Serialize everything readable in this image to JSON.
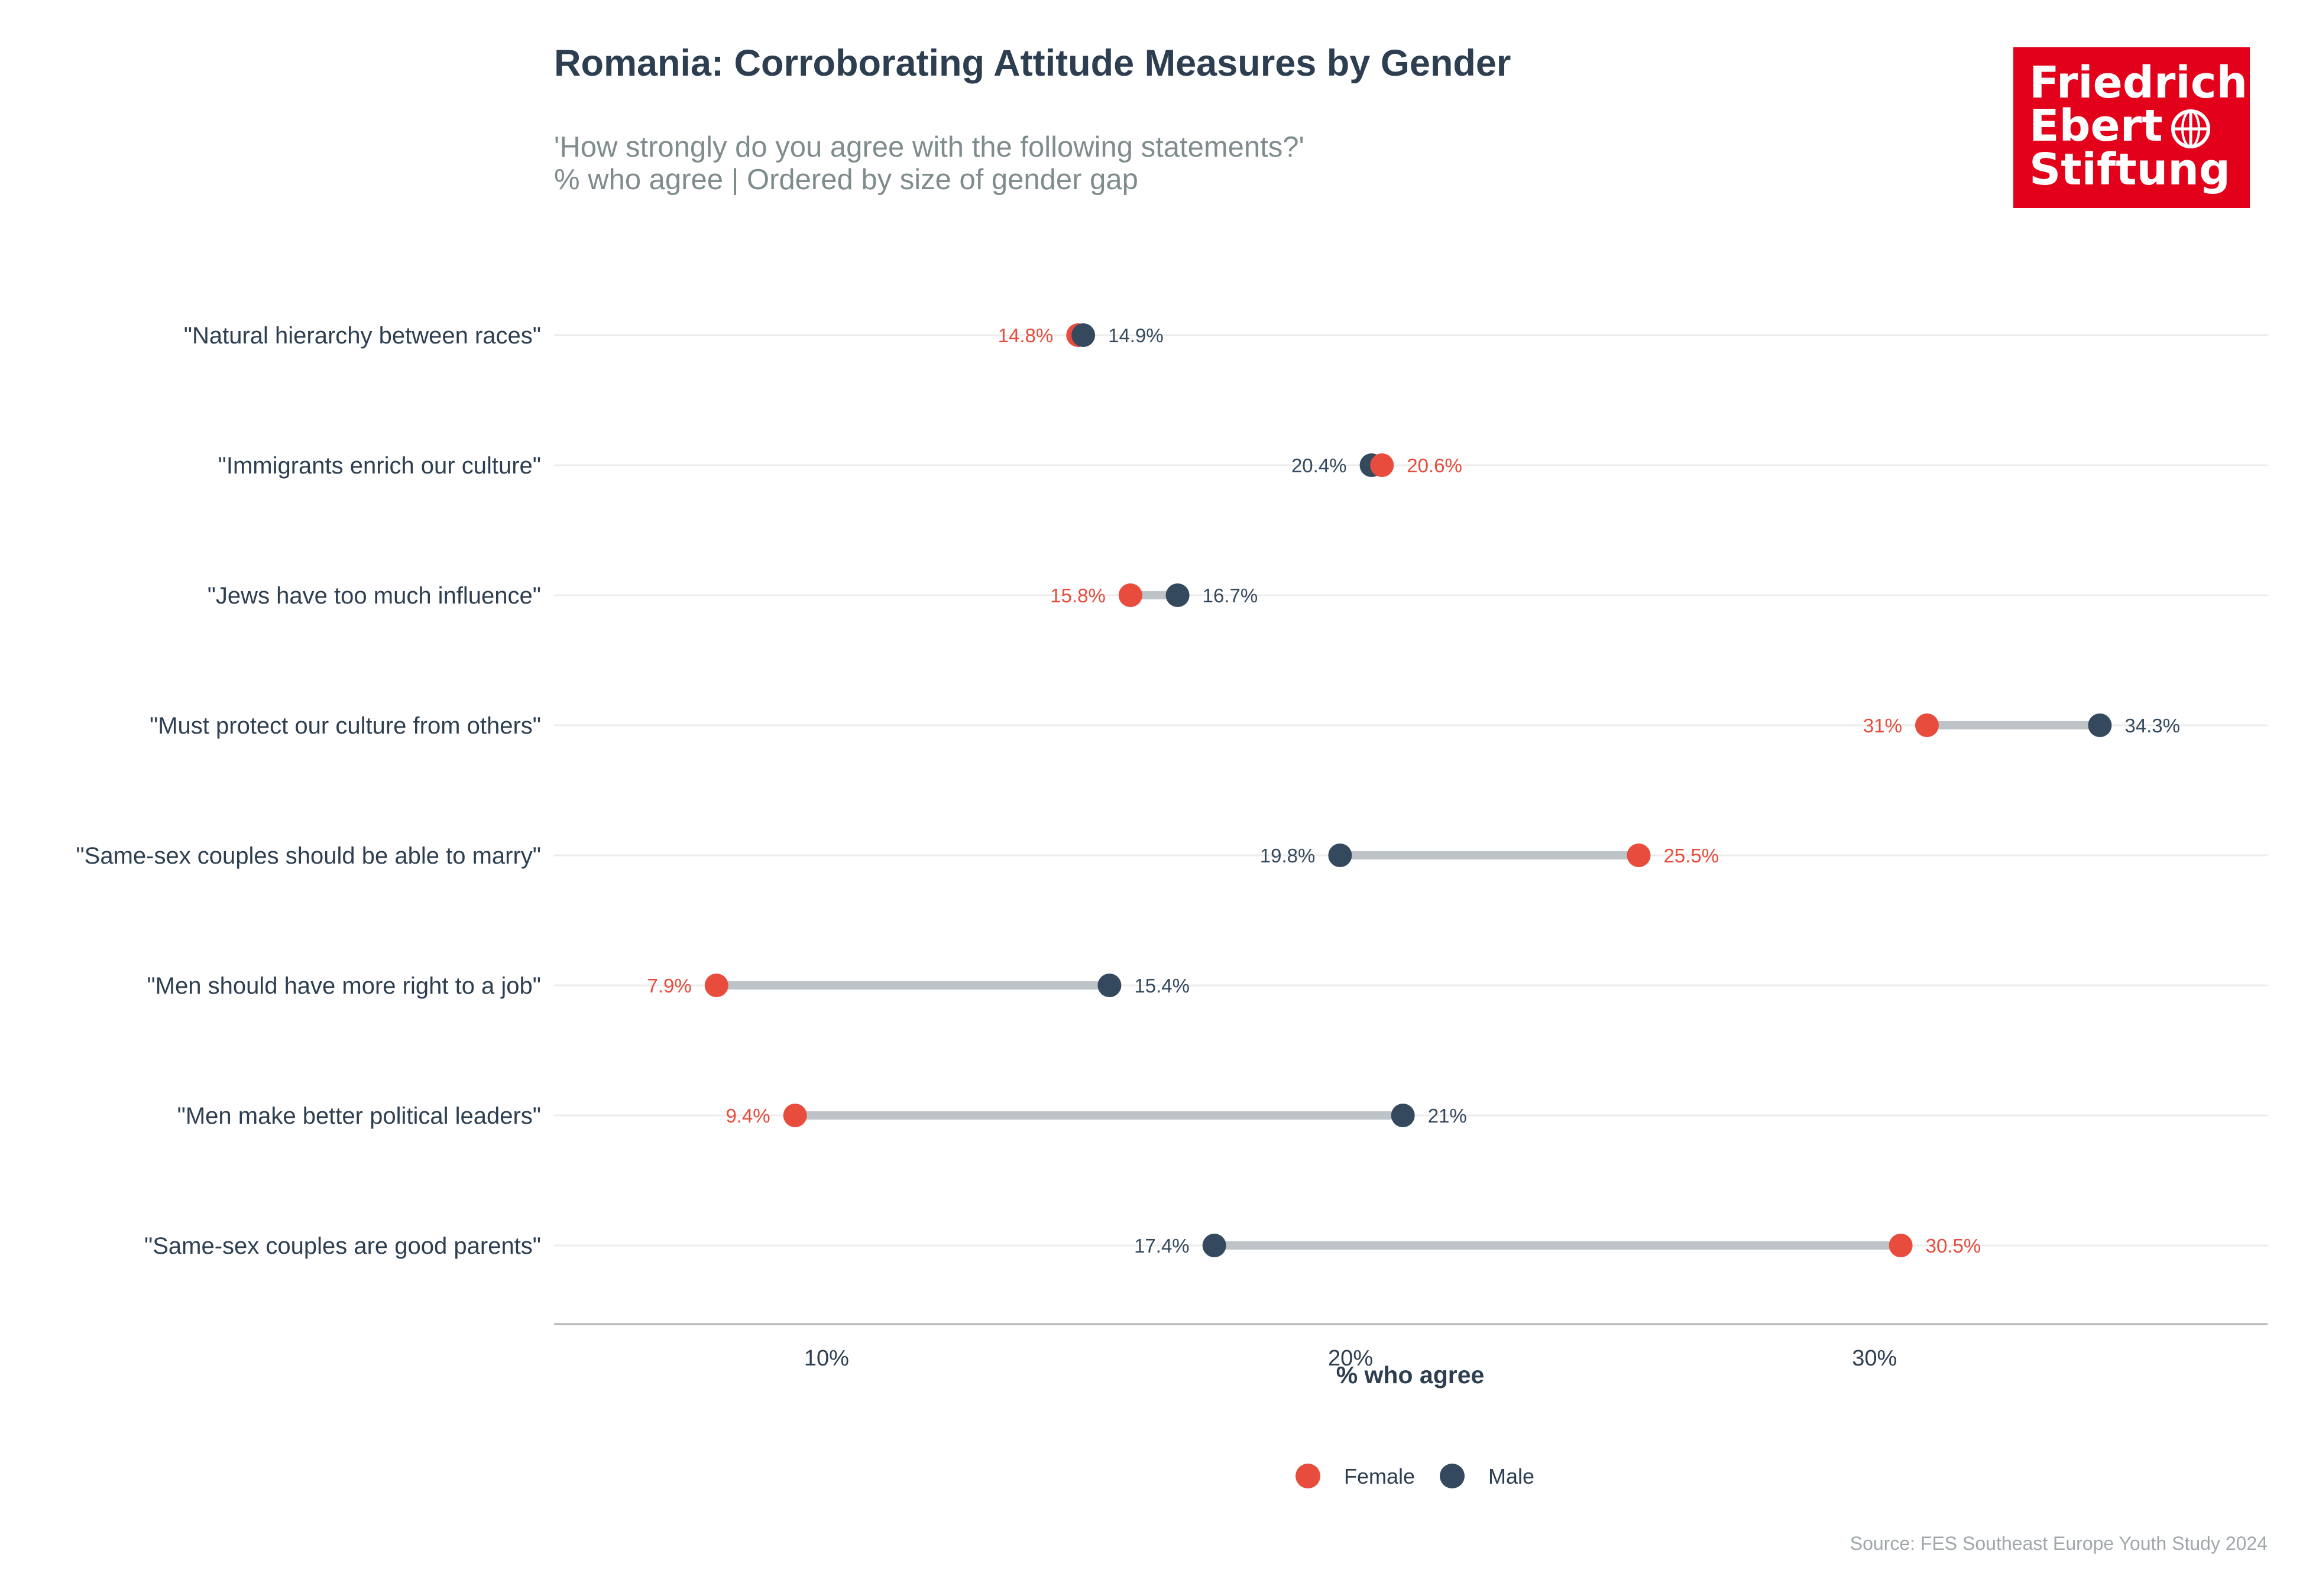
{
  "title": "Romania: Corroborating Attitude Measures by Gender",
  "subtitle_line1": "'How strongly do you agree with the following statements?'",
  "subtitle_line2": "% who agree | Ordered by size of gender gap",
  "caption": "Source: FES Southeast Europe Youth Study 2024",
  "logo": {
    "line1": "Friedrich",
    "line2": "Ebert",
    "line3": "Stiftung",
    "background": "#e2001a"
  },
  "colors": {
    "female": "#e74c3c",
    "male": "#34495e",
    "segment": "#bdc3c7",
    "grid": "#ececec",
    "axis": "#b3b3b3"
  },
  "legend": [
    {
      "key": "female",
      "label": "Female"
    },
    {
      "key": "male",
      "label": "Male"
    }
  ],
  "chart_data": {
    "type": "dumbbell",
    "xlabel": "% who agree",
    "ylabel": "",
    "xlim": [
      4.8,
      37.5
    ],
    "x_ticks": [
      10,
      20,
      30
    ],
    "x_tick_labels": [
      "10%",
      "20%",
      "30%"
    ],
    "grid": "horizontal",
    "legend_position": "bottom",
    "series": [
      {
        "name": "Female",
        "color": "#e74c3c"
      },
      {
        "name": "Male",
        "color": "#34495e"
      }
    ],
    "categories": [
      "\"Natural hierarchy between races\"",
      "\"Immigrants enrich our culture\"",
      "\"Jews have too much influence\"",
      "\"Must protect our culture from others\"",
      "\"Same-sex couples should be able to marry\"",
      "\"Men should have more right to a job\"",
      "\"Men make better political leaders\"",
      "\"Same-sex couples are good parents\""
    ],
    "female": [
      14.8,
      20.6,
      15.8,
      31,
      25.5,
      7.9,
      9.4,
      30.5
    ],
    "male": [
      14.9,
      20.4,
      16.7,
      34.3,
      19.8,
      15.4,
      21,
      17.4
    ],
    "female_labels": [
      "14.8%",
      "20.6%",
      "15.8%",
      "31%",
      "25.5%",
      "7.9%",
      "9.4%",
      "30.5%"
    ],
    "male_labels": [
      "14.9%",
      "20.4%",
      "16.7%",
      "34.3%",
      "19.8%",
      "15.4%",
      "21%",
      "17.4%"
    ]
  }
}
